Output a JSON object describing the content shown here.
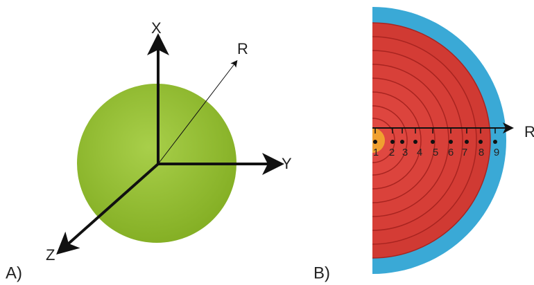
{
  "panel_a": {
    "label": "A)",
    "axes": {
      "x": "X",
      "y": "Y",
      "z": "Z",
      "r": "R"
    }
  },
  "panel_b": {
    "label": "B)",
    "axis_label": "R",
    "shell_labels": [
      "1",
      "2",
      "3",
      "4",
      "5",
      "6",
      "7",
      "8",
      "9"
    ]
  }
}
